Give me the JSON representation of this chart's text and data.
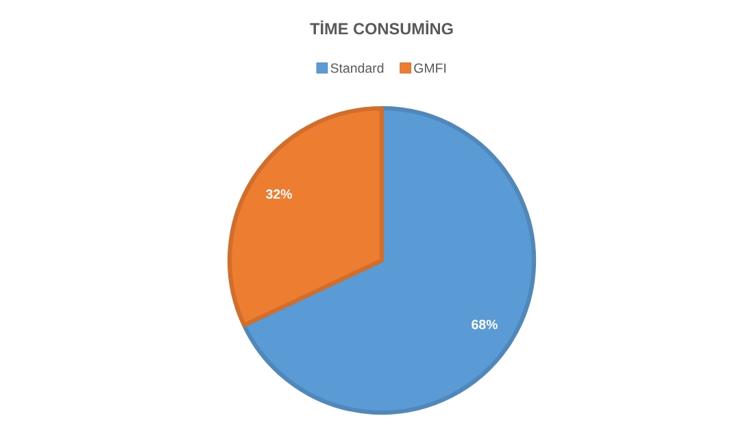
{
  "chart_data": {
    "type": "pie",
    "title": "TİME CONSUMİNG",
    "categories": [
      "Standard",
      "GMFI"
    ],
    "values": [
      68,
      32
    ],
    "colors": [
      "#5b9bd5",
      "#ed7d31"
    ],
    "value_labels": [
      "68%",
      "32%"
    ],
    "legend": "top"
  }
}
